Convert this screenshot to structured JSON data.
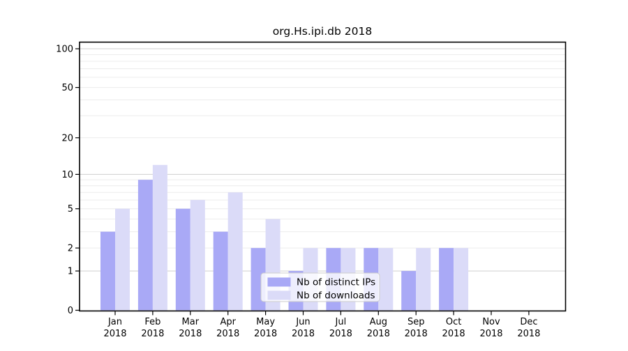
{
  "chart_data": {
    "type": "bar",
    "title": "org.Hs.ipi.db 2018",
    "categories": [
      "Jan",
      "Feb",
      "Mar",
      "Apr",
      "May",
      "Jun",
      "Jul",
      "Aug",
      "Sep",
      "Oct",
      "Nov",
      "Dec"
    ],
    "category_year": "2018",
    "series": [
      {
        "name": "Nb of distinct IPs",
        "color": "#a9a9f6",
        "values": [
          3,
          9,
          5,
          3,
          2,
          1,
          2,
          2,
          1,
          2,
          0,
          0
        ]
      },
      {
        "name": "Nb of downloads",
        "color": "#dbdbf8",
        "values": [
          5,
          12,
          6,
          7,
          4,
          2,
          2,
          2,
          2,
          2,
          0,
          0
        ]
      }
    ],
    "xlabel": "",
    "ylabel": "",
    "yscale": "log1p",
    "ylim": [
      0,
      100
    ],
    "yticks": [
      0,
      1,
      2,
      5,
      10,
      20,
      50,
      100
    ],
    "major_gridlines": [
      1,
      10,
      100
    ],
    "minor_gridlines": [
      2,
      3,
      4,
      5,
      6,
      7,
      8,
      9,
      20,
      30,
      40,
      50,
      60,
      70,
      80,
      90
    ],
    "grid": true,
    "legend_position": "inside-bottom-center",
    "colors": {
      "major_grid": "#cfcfcf",
      "minor_grid": "#ececec",
      "spine": "#000000",
      "legend_border": "#cccccc",
      "legend_bg": "#ffffff"
    }
  }
}
